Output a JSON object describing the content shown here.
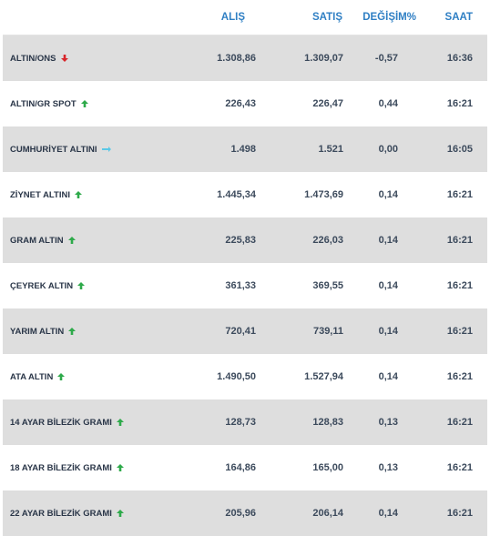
{
  "header": {
    "alis": "ALIŞ",
    "satis": "SATIŞ",
    "degisim": "DEĞİŞİM%",
    "saat": "SAAT"
  },
  "colors": {
    "up": "#2eaa4a",
    "down": "#d8262b",
    "flat": "#5bc8e6",
    "header": "#2f7fc4"
  },
  "rows": [
    {
      "name": "ALTIN/ONS",
      "trend": "down",
      "alis": "1.308,86",
      "satis": "1.309,07",
      "degisim": "-0,57",
      "saat": "16:36"
    },
    {
      "name": "ALTIN/GR SPOT",
      "trend": "up",
      "alis": "226,43",
      "satis": "226,47",
      "degisim": "0,44",
      "saat": "16:21"
    },
    {
      "name": "CUMHURİYET ALTINI",
      "trend": "flat",
      "alis": "1.498",
      "satis": "1.521",
      "degisim": "0,00",
      "saat": "16:05"
    },
    {
      "name": "ZİYNET ALTINI",
      "trend": "up",
      "alis": "1.445,34",
      "satis": "1.473,69",
      "degisim": "0,14",
      "saat": "16:21"
    },
    {
      "name": "GRAM ALTIN",
      "trend": "up",
      "alis": "225,83",
      "satis": "226,03",
      "degisim": "0,14",
      "saat": "16:21"
    },
    {
      "name": "ÇEYREK ALTIN",
      "trend": "up",
      "alis": "361,33",
      "satis": "369,55",
      "degisim": "0,14",
      "saat": "16:21"
    },
    {
      "name": "YARIM ALTIN",
      "trend": "up",
      "alis": "720,41",
      "satis": "739,11",
      "degisim": "0,14",
      "saat": "16:21"
    },
    {
      "name": "ATA ALTIN",
      "trend": "up",
      "alis": "1.490,50",
      "satis": "1.527,94",
      "degisim": "0,14",
      "saat": "16:21"
    },
    {
      "name": "14 AYAR BİLEZİK GRAMI",
      "trend": "up",
      "alis": "128,73",
      "satis": "128,83",
      "degisim": "0,13",
      "saat": "16:21"
    },
    {
      "name": "18 AYAR BİLEZİK GRAMI",
      "trend": "up",
      "alis": "164,86",
      "satis": "165,00",
      "degisim": "0,13",
      "saat": "16:21"
    },
    {
      "name": "22 AYAR BİLEZİK GRAMI",
      "trend": "up",
      "alis": "205,96",
      "satis": "206,14",
      "degisim": "0,14",
      "saat": "16:21"
    }
  ]
}
